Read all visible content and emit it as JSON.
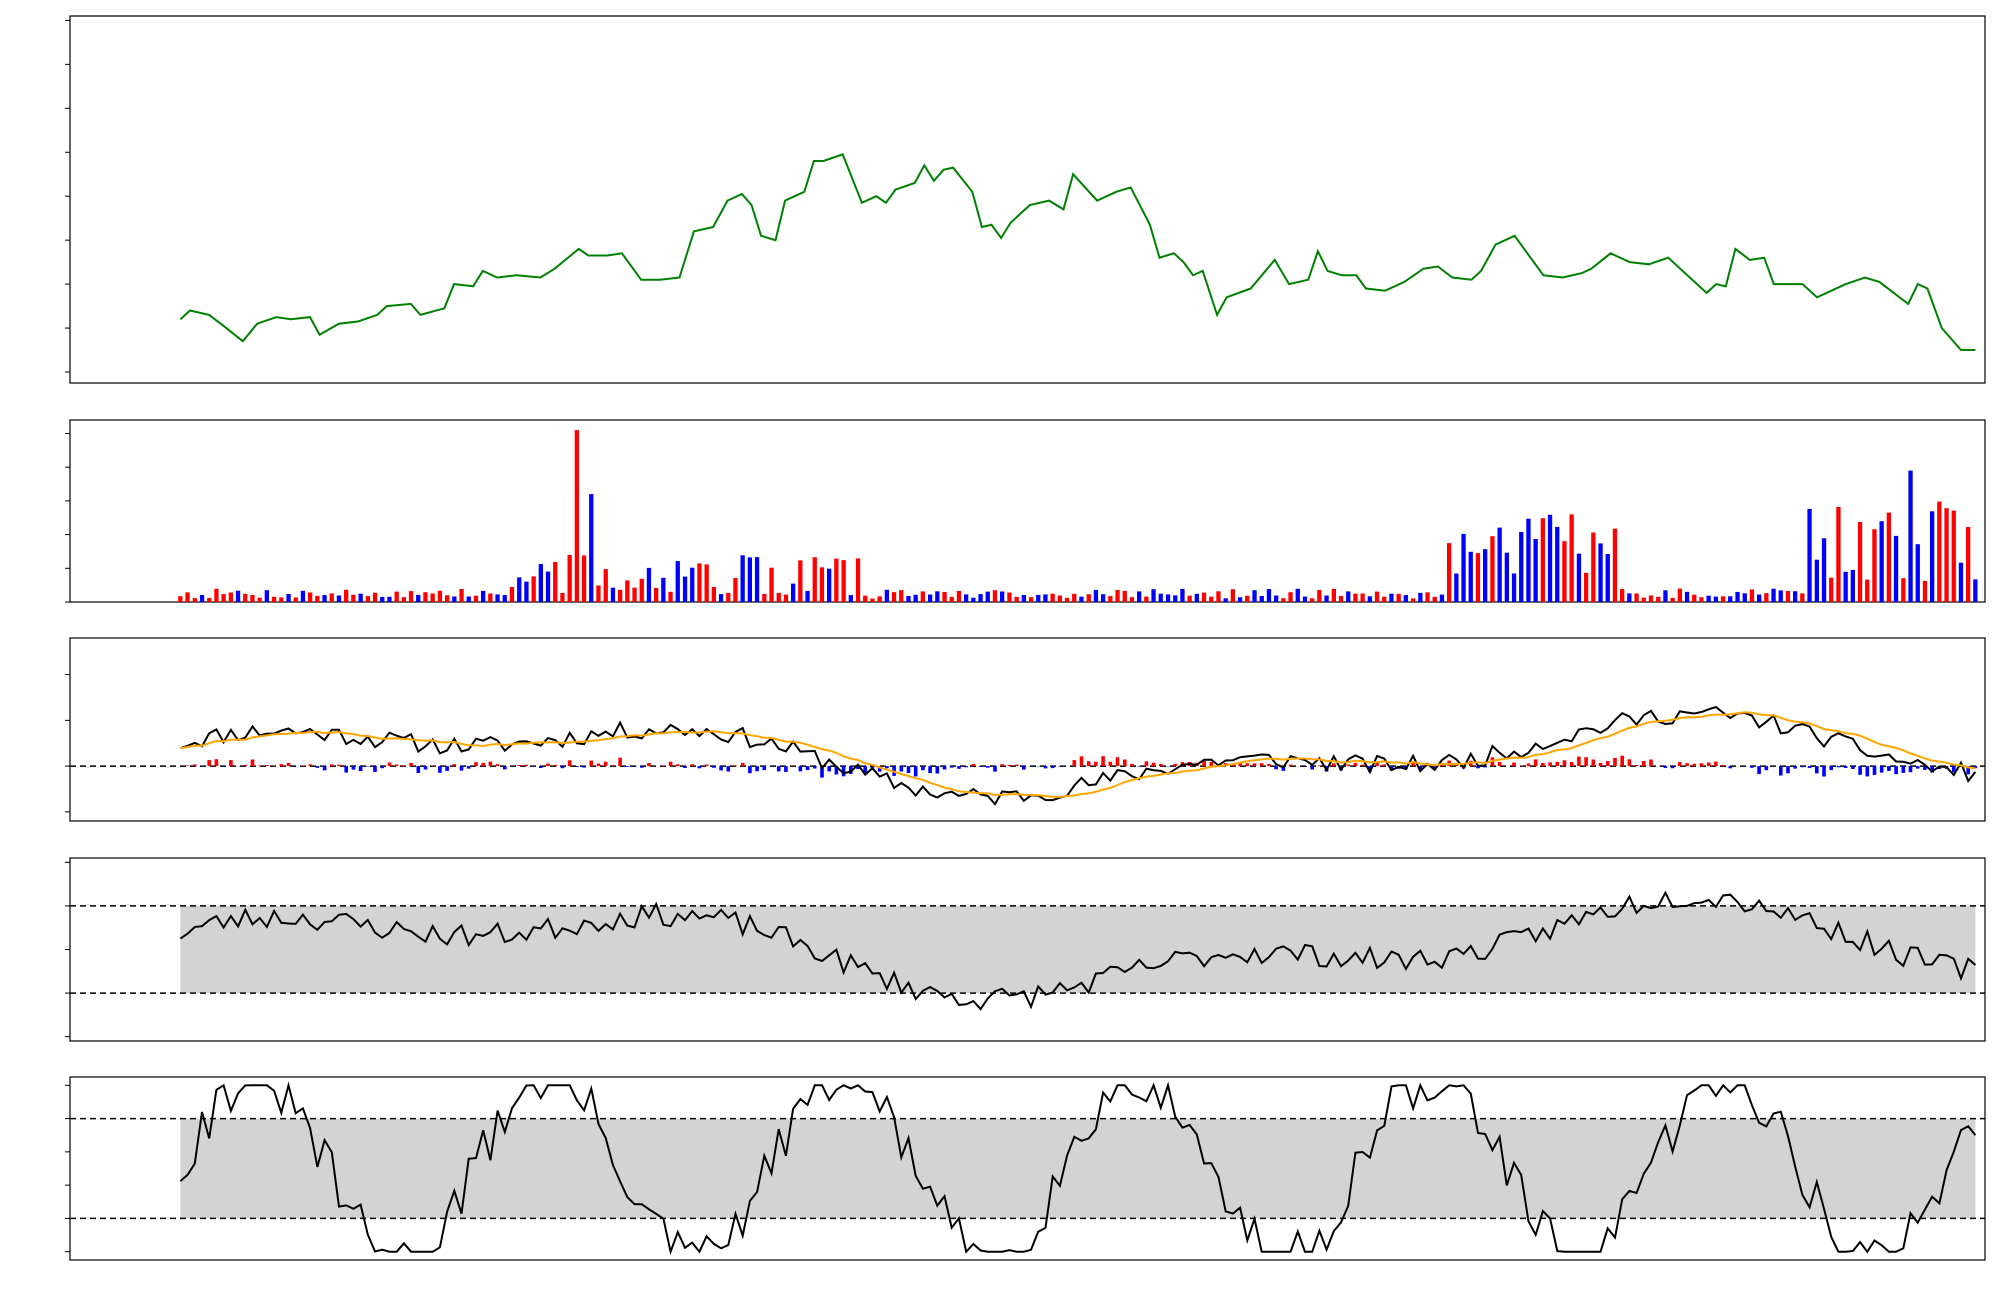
{
  "chart_data": [
    {
      "type": "line",
      "title": "",
      "xlabel": "",
      "ylabel": "",
      "xlim": [
        "2022-01-17",
        "2023-02-20"
      ],
      "ylim": [
        7750,
        16100
      ],
      "yticks": [
        8000,
        9000,
        10000,
        11000,
        12000,
        13000,
        14000,
        15000,
        16000
      ],
      "series": [
        {
          "color": "#008000",
          "points": [
            [
              "2022-02-09",
              9200
            ],
            [
              "2022-02-11",
              9400
            ],
            [
              "2022-02-15",
              9300
            ],
            [
              "2022-02-18",
              9050
            ],
            [
              "2022-02-22",
              8700
            ],
            [
              "2022-02-25",
              9100
            ],
            [
              "2022-03-01",
              9250
            ],
            [
              "2022-03-04",
              9200
            ],
            [
              "2022-03-08",
              9250
            ],
            [
              "2022-03-10",
              8850
            ],
            [
              "2022-03-14",
              9100
            ],
            [
              "2022-03-18",
              9150
            ],
            [
              "2022-03-22",
              9300
            ],
            [
              "2022-03-24",
              9500
            ],
            [
              "2022-03-29",
              9550
            ],
            [
              "2022-03-31",
              9300
            ],
            [
              "2022-04-05",
              9450
            ],
            [
              "2022-04-07",
              10000
            ],
            [
              "2022-04-11",
              9950
            ],
            [
              "2022-04-13",
              10300
            ],
            [
              "2022-04-16",
              10150
            ],
            [
              "2022-04-20",
              10200
            ],
            [
              "2022-04-25",
              10150
            ],
            [
              "2022-04-28",
              10350
            ],
            [
              "2022-05-03",
              10800
            ],
            [
              "2022-05-05",
              10650
            ],
            [
              "2022-05-09",
              10650
            ],
            [
              "2022-05-12",
              10700
            ],
            [
              "2022-05-16",
              10100
            ],
            [
              "2022-05-20",
              10100
            ],
            [
              "2022-05-24",
              10150
            ],
            [
              "2022-05-27",
              11200
            ],
            [
              "2022-05-31",
              11300
            ],
            [
              "2022-06-03",
              11900
            ],
            [
              "2022-06-06",
              12050
            ],
            [
              "2022-06-08",
              11800
            ],
            [
              "2022-06-10",
              11100
            ],
            [
              "2022-06-13",
              11000
            ],
            [
              "2022-06-15",
              11900
            ],
            [
              "2022-06-19",
              12100
            ],
            [
              "2022-06-21",
              12800
            ],
            [
              "2022-06-23",
              12800
            ],
            [
              "2022-06-27",
              12950
            ],
            [
              "2022-07-01",
              11850
            ],
            [
              "2022-07-04",
              12000
            ],
            [
              "2022-07-06",
              11850
            ],
            [
              "2022-07-08",
              12150
            ],
            [
              "2022-07-12",
              12300
            ],
            [
              "2022-07-14",
              12700
            ],
            [
              "2022-07-16",
              12350
            ],
            [
              "2022-07-18",
              12600
            ],
            [
              "2022-07-20",
              12650
            ],
            [
              "2022-07-24",
              12100
            ],
            [
              "2022-07-26",
              11300
            ],
            [
              "2022-07-28",
              11350
            ],
            [
              "2022-07-30",
              11050
            ],
            [
              "2022-08-01",
              11400
            ],
            [
              "2022-08-05",
              11800
            ],
            [
              "2022-08-09",
              11900
            ],
            [
              "2022-08-12",
              11700
            ],
            [
              "2022-08-14",
              12500
            ],
            [
              "2022-08-19",
              11900
            ],
            [
              "2022-08-23",
              12100
            ],
            [
              "2022-08-26",
              12200
            ],
            [
              "2022-08-30",
              11350
            ],
            [
              "2022-09-01",
              10600
            ],
            [
              "2022-09-04",
              10700
            ],
            [
              "2022-09-06",
              10500
            ],
            [
              "2022-09-08",
              10200
            ],
            [
              "2022-09-10",
              10300
            ],
            [
              "2022-09-13",
              9300
            ],
            [
              "2022-09-15",
              9700
            ],
            [
              "2022-09-20",
              9900
            ],
            [
              "2022-09-25",
              10550
            ],
            [
              "2022-09-28",
              10000
            ],
            [
              "2022-10-02",
              10100
            ],
            [
              "2022-10-04",
              10750
            ],
            [
              "2022-10-06",
              10300
            ],
            [
              "2022-10-09",
              10200
            ],
            [
              "2022-10-12",
              10200
            ],
            [
              "2022-10-14",
              9900
            ],
            [
              "2022-10-18",
              9850
            ],
            [
              "2022-10-22",
              10050
            ],
            [
              "2022-10-26",
              10350
            ],
            [
              "2022-10-29",
              10400
            ],
            [
              "2022-11-01",
              10150
            ],
            [
              "2022-11-05",
              10100
            ],
            [
              "2022-11-07",
              10300
            ],
            [
              "2022-11-10",
              10900
            ],
            [
              "2022-11-14",
              11100
            ],
            [
              "2022-11-20",
              10200
            ],
            [
              "2022-11-24",
              10150
            ],
            [
              "2022-11-28",
              10250
            ],
            [
              "2022-11-30",
              10350
            ],
            [
              "2022-12-04",
              10700
            ],
            [
              "2022-12-08",
              10500
            ],
            [
              "2022-12-12",
              10450
            ],
            [
              "2022-12-16",
              10600
            ],
            [
              "2022-12-20",
              10200
            ],
            [
              "2022-12-24",
              9800
            ],
            [
              "2022-12-26",
              10000
            ],
            [
              "2022-12-28",
              9950
            ],
            [
              "2022-12-30",
              10800
            ],
            [
              "2023-01-02",
              10550
            ],
            [
              "2023-01-05",
              10600
            ],
            [
              "2023-01-07",
              10000
            ],
            [
              "2023-01-09",
              10000
            ],
            [
              "2023-01-13",
              10000
            ],
            [
              "2023-01-16",
              9700
            ],
            [
              "2023-01-19",
              9850
            ],
            [
              "2023-01-22",
              10000
            ],
            [
              "2023-01-26",
              10150
            ],
            [
              "2023-01-29",
              10050
            ],
            [
              "2023-02-01",
              9800
            ],
            [
              "2023-02-04",
              9550
            ],
            [
              "2023-02-06",
              10000
            ],
            [
              "2023-02-08",
              9900
            ],
            [
              "2023-02-11",
              9000
            ],
            [
              "2023-02-15",
              8500
            ],
            [
              "2023-02-18",
              8500
            ]
          ]
        }
      ]
    }
  ]
}
